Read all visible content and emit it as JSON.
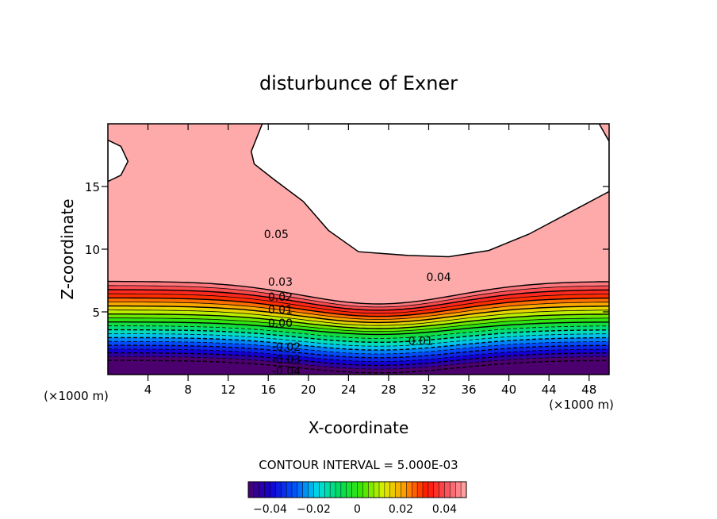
{
  "chart_data": {
    "type": "heatmap",
    "title": "disturbunce of Exner",
    "xlabel": "X-coordinate",
    "ylabel": "Z-coordinate",
    "x_unit": "(×1000 m)",
    "y_unit": "(×1000 m)",
    "xlim": [
      0,
      50
    ],
    "ylim": [
      0,
      20
    ],
    "x_ticks": [
      4,
      8,
      12,
      16,
      20,
      24,
      28,
      32,
      36,
      40,
      44,
      48
    ],
    "y_ticks": [
      5,
      10,
      15
    ],
    "contour_interval_text": "CONTOUR INTERVAL = 5.000E-03",
    "contour_interval": 0.005,
    "contour_labels": [
      {
        "text": "0.05",
        "x": 16.8,
        "z": 11.2
      },
      {
        "text": "0.04",
        "x": 33.0,
        "z": 7.8
      },
      {
        "text": "0.03",
        "x": 17.2,
        "z": 7.4
      },
      {
        "text": "0.02",
        "x": 17.2,
        "z": 6.2
      },
      {
        "text": "0.01",
        "x": 17.2,
        "z": 5.2
      },
      {
        "text": "0.00",
        "x": 17.2,
        "z": 4.1
      },
      {
        "text": "-0.01",
        "x": 31.0,
        "z": 2.7
      },
      {
        "text": "-0.02",
        "x": 17.8,
        "z": 2.2
      },
      {
        "text": "-0.03",
        "x": 17.8,
        "z": 1.2
      },
      {
        "text": "-0.04",
        "x": 17.8,
        "z": 0.3
      }
    ],
    "colorbar": {
      "min": -0.05,
      "max": 0.05,
      "tick_values": [
        -0.04,
        -0.02,
        0,
        0.02,
        0.04
      ],
      "tick_labels": [
        "-0.04",
        "-0.02",
        "0",
        "0.02",
        "0.04"
      ]
    },
    "blank_region_note": ""
  }
}
